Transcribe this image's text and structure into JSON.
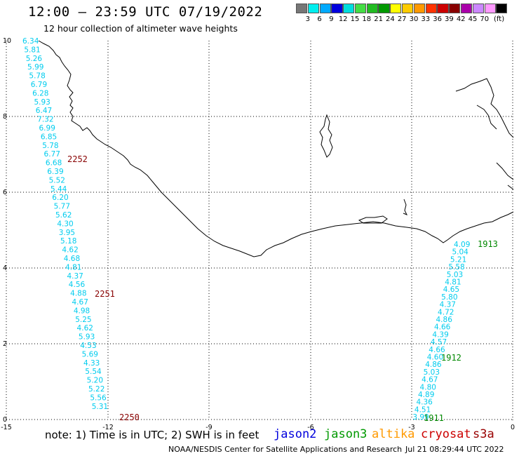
{
  "title": "12:00 – 23:59 UTC 07/19/2022",
  "subtitle": "12 hour collection of altimeter wave heights",
  "colorbar": {
    "unit": "(ft)",
    "colors": [
      "#777777",
      "#00eeee",
      "#00aaff",
      "#0000dd",
      "#00dddd",
      "#44dd44",
      "#22bb22",
      "#009900",
      "#ffff00",
      "#ffcc00",
      "#ff9900",
      "#ff3300",
      "#cc0000",
      "#880000",
      "#aa00aa",
      "#cc88ff",
      "#ff99ff",
      "#000000"
    ],
    "labels": [
      "3",
      "6",
      "9",
      "12",
      "15",
      "18",
      "21",
      "24",
      "27",
      "30",
      "33",
      "36",
      "39",
      "42",
      "45",
      "70"
    ]
  },
  "axes": {
    "x_ticks": [
      "-15",
      "-12",
      "-9",
      "-6",
      "-3",
      "0"
    ],
    "y_ticks": [
      "0",
      "2",
      "4",
      "6",
      "8",
      "10"
    ]
  },
  "tracks": [
    {
      "satellite": "cryosat",
      "value_color": "#00ccee",
      "time_color": "#880000",
      "values": [
        "6.34",
        "5.81",
        "5.26",
        "5.99",
        "5.78",
        "6.79",
        "6.28",
        "5.93",
        "6.47",
        "7.32",
        "6.99",
        "6.85",
        "5.78",
        "6.77",
        "6.68",
        "6.39",
        "5.52",
        "5.44",
        "6.20",
        "5.77",
        "5.62",
        "4.30",
        "3.95",
        "5.18",
        "4.62",
        "4.68",
        "4.81",
        "4.37",
        "4.56",
        "4.88",
        "4.67",
        "4.98",
        "5.25",
        "4.62",
        "5.93",
        "4.53",
        "5.69",
        "4.33",
        "5.54",
        "5.20",
        "5.22",
        "5.56",
        "5.31"
      ],
      "times": [
        "2252",
        "2251",
        "2250"
      ]
    },
    {
      "satellite": "jason3",
      "value_color": "#00ccee",
      "time_color": "#008800",
      "values": [
        "4.09",
        "5.04",
        "5.21",
        "5.58",
        "5.03",
        "4.81",
        "4.65",
        "5.80",
        "4.37",
        "4.72",
        "4.86",
        "4.66",
        "4.39",
        "4.57",
        "4.66",
        "4.60",
        "4.86",
        "5.03",
        "4.67",
        "4.80",
        "4.89",
        "4.36",
        "4.51",
        "3.99"
      ],
      "times": [
        "1913",
        "1912",
        "1911"
      ]
    }
  ],
  "legend": {
    "note": "note:  1) Time is in UTC;  2) SWH is in feet",
    "items": [
      {
        "label": "jason2",
        "color": "#0000dd"
      },
      {
        "label": "jason3",
        "color": "#009900"
      },
      {
        "label": "altika",
        "color": "#ff9900"
      },
      {
        "label": "cryosat",
        "color": "#cc0000"
      },
      {
        "label": "s3a",
        "color": "#990000"
      }
    ]
  },
  "credit": "NOAA/NESDIS Center for Satellite Applications and Research",
  "timestamp": "Jul 21 08:29:44 UTC 2022"
}
